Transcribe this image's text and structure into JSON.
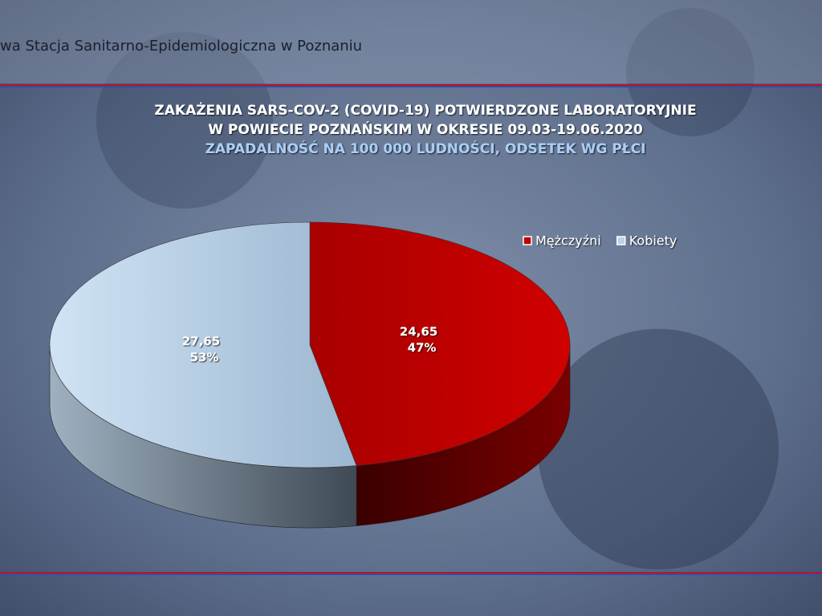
{
  "header": {
    "text": "wa Stacja Sanitarno-Epidemiologiczna w Poznaniu"
  },
  "chart_data": {
    "type": "pie",
    "title": [
      "ZAKAŻENIA SARS-COV-2 (COVID-19) POTWIERDZONE LABORATORYJNIE",
      "W POWIECIE POZNAŃSKIM W OKRESIE 09.03-19.06.2020"
    ],
    "subtitle": "ZAPADALNOŚĆ NA 100 000 LUDNOŚCI, ODSETEK WG PŁCI",
    "categories": [
      "Mężczyźni",
      "Kobiety"
    ],
    "values": [
      24.65,
      27.65
    ],
    "value_labels": [
      "24,65",
      "27,65"
    ],
    "percentages": [
      47,
      53
    ],
    "percentage_labels": [
      "47%",
      "53%"
    ],
    "colors": [
      "#c00000",
      "#b9d3ea"
    ],
    "legend": "top-right"
  }
}
